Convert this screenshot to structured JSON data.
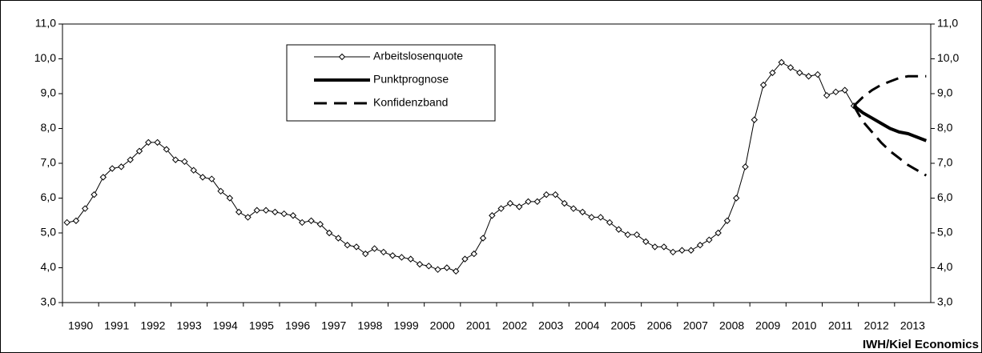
{
  "chart_data": {
    "type": "line",
    "categories": [
      "1990",
      null,
      null,
      null,
      "1991",
      null,
      null,
      null,
      "1992",
      null,
      null,
      null,
      "1993",
      null,
      null,
      null,
      "1994",
      null,
      null,
      null,
      "1995",
      null,
      null,
      null,
      "1996",
      null,
      null,
      null,
      "1997",
      null,
      null,
      null,
      "1998",
      null,
      null,
      null,
      "1999",
      null,
      null,
      null,
      "2000",
      null,
      null,
      null,
      "2001",
      null,
      null,
      null,
      "2002",
      null,
      null,
      null,
      "2003",
      null,
      null,
      null,
      "2004",
      null,
      null,
      null,
      "2005",
      null,
      null,
      null,
      "2006",
      null,
      null,
      null,
      "2007",
      null,
      null,
      null,
      "2008",
      null,
      null,
      null,
      "2009",
      null,
      null,
      null,
      "2010",
      null,
      null,
      null,
      "2011",
      null,
      null,
      null,
      "2012",
      null,
      null,
      null,
      "2013",
      null,
      null,
      null
    ],
    "series": [
      {
        "name": "Arbeitslosenquote",
        "color": "#000000",
        "line_width": 1,
        "markers": true,
        "dashed": false,
        "values": [
          5.3,
          5.35,
          5.7,
          6.1,
          6.6,
          6.85,
          6.9,
          7.1,
          7.35,
          7.6,
          7.6,
          7.4,
          7.1,
          7.05,
          6.8,
          6.6,
          6.55,
          6.2,
          6.0,
          5.6,
          5.45,
          5.65,
          5.65,
          5.6,
          5.55,
          5.5,
          5.3,
          5.35,
          5.25,
          5.0,
          4.85,
          4.65,
          4.6,
          4.4,
          4.55,
          4.45,
          4.35,
          4.3,
          4.25,
          4.1,
          4.05,
          3.95,
          4.0,
          3.9,
          4.25,
          4.4,
          4.85,
          5.5,
          5.7,
          5.85,
          5.75,
          5.9,
          5.9,
          6.1,
          6.1,
          5.85,
          5.7,
          5.6,
          5.45,
          5.45,
          5.3,
          5.1,
          4.95,
          4.95,
          4.75,
          4.6,
          4.6,
          4.45,
          4.5,
          4.5,
          4.65,
          4.8,
          5.0,
          5.35,
          6.0,
          6.9,
          8.25,
          9.25,
          9.6,
          9.9,
          9.75,
          9.6,
          9.5,
          9.55,
          8.95,
          9.05,
          9.1,
          8.65,
          null,
          null,
          null,
          null,
          null,
          null,
          null,
          null
        ]
      },
      {
        "name": "Punktprognose",
        "color": "#000000",
        "line_width": 4,
        "markers": false,
        "dashed": false,
        "values": [
          null,
          null,
          null,
          null,
          null,
          null,
          null,
          null,
          null,
          null,
          null,
          null,
          null,
          null,
          null,
          null,
          null,
          null,
          null,
          null,
          null,
          null,
          null,
          null,
          null,
          null,
          null,
          null,
          null,
          null,
          null,
          null,
          null,
          null,
          null,
          null,
          null,
          null,
          null,
          null,
          null,
          null,
          null,
          null,
          null,
          null,
          null,
          null,
          null,
          null,
          null,
          null,
          null,
          null,
          null,
          null,
          null,
          null,
          null,
          null,
          null,
          null,
          null,
          null,
          null,
          null,
          null,
          null,
          null,
          null,
          null,
          null,
          null,
          null,
          null,
          null,
          null,
          null,
          null,
          null,
          null,
          null,
          null,
          null,
          null,
          null,
          null,
          8.65,
          8.45,
          8.3,
          8.15,
          8.0,
          7.9,
          7.85,
          7.75,
          7.65
        ]
      },
      {
        "name": "Konfidenzband",
        "color": "#000000",
        "line_width": 3,
        "markers": false,
        "dashed": true,
        "values": [
          null,
          null,
          null,
          null,
          null,
          null,
          null,
          null,
          null,
          null,
          null,
          null,
          null,
          null,
          null,
          null,
          null,
          null,
          null,
          null,
          null,
          null,
          null,
          null,
          null,
          null,
          null,
          null,
          null,
          null,
          null,
          null,
          null,
          null,
          null,
          null,
          null,
          null,
          null,
          null,
          null,
          null,
          null,
          null,
          null,
          null,
          null,
          null,
          null,
          null,
          null,
          null,
          null,
          null,
          null,
          null,
          null,
          null,
          null,
          null,
          null,
          null,
          null,
          null,
          null,
          null,
          null,
          null,
          null,
          null,
          null,
          null,
          null,
          null,
          null,
          null,
          null,
          null,
          null,
          null,
          null,
          null,
          null,
          null,
          null,
          null,
          null,
          8.65,
          8.9,
          9.1,
          9.25,
          9.35,
          9.45,
          9.5,
          9.5,
          9.5
        ],
        "lower": [
          null,
          null,
          null,
          null,
          null,
          null,
          null,
          null,
          null,
          null,
          null,
          null,
          null,
          null,
          null,
          null,
          null,
          null,
          null,
          null,
          null,
          null,
          null,
          null,
          null,
          null,
          null,
          null,
          null,
          null,
          null,
          null,
          null,
          null,
          null,
          null,
          null,
          null,
          null,
          null,
          null,
          null,
          null,
          null,
          null,
          null,
          null,
          null,
          null,
          null,
          null,
          null,
          null,
          null,
          null,
          null,
          null,
          null,
          null,
          null,
          null,
          null,
          null,
          null,
          null,
          null,
          null,
          null,
          null,
          null,
          null,
          null,
          null,
          null,
          null,
          null,
          null,
          null,
          null,
          null,
          null,
          null,
          null,
          null,
          null,
          null,
          null,
          8.65,
          8.2,
          7.9,
          7.6,
          7.35,
          7.15,
          6.95,
          6.8,
          6.65
        ]
      }
    ],
    "ylim": [
      3,
      11
    ],
    "yticks": [
      {
        "value": 3,
        "label": "3,0"
      },
      {
        "value": 4,
        "label": "4,0"
      },
      {
        "value": 5,
        "label": "5,0"
      },
      {
        "value": 6,
        "label": "6,0"
      },
      {
        "value": 7,
        "label": "7,0"
      },
      {
        "value": 8,
        "label": "8,0"
      },
      {
        "value": 9,
        "label": "9,0"
      },
      {
        "value": 10,
        "label": "10,0"
      },
      {
        "value": 11,
        "label": "11,0"
      }
    ],
    "y2lim": [
      3,
      11
    ],
    "y2ticks": [
      {
        "value": 3,
        "label": "3,0"
      },
      {
        "value": 4,
        "label": "4,0"
      },
      {
        "value": 5,
        "label": "5,0"
      },
      {
        "value": 6,
        "label": "6,0"
      },
      {
        "value": 7,
        "label": "7,0"
      },
      {
        "value": 8,
        "label": "8,0"
      },
      {
        "value": 9,
        "label": "9,0"
      },
      {
        "value": 10,
        "label": "10,0"
      },
      {
        "value": 11,
        "label": "11,0"
      }
    ],
    "grid": false,
    "legend": "top-center",
    "source": "IWH/Kiel Economics"
  }
}
